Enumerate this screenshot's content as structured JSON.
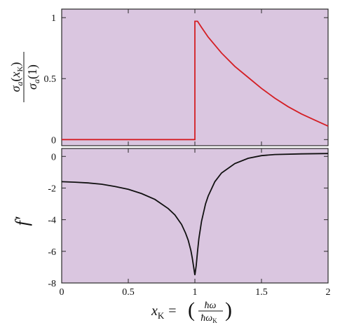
{
  "chart_data": [
    {
      "type": "line",
      "title": "",
      "ylabel": {
        "numerator": {
          "sym": "σ",
          "sub": "a",
          "open": "(",
          "arg": "x",
          "argsub": "K",
          "close": ")"
        },
        "denominator": {
          "sym": "σ",
          "sub": "a",
          "open": "(",
          "arg": "1",
          "close": ")"
        }
      },
      "xlim": [
        0,
        2
      ],
      "ylim": [
        -0.05,
        1.07
      ],
      "yticks": [
        "0",
        "0.5",
        "1"
      ],
      "grid": false,
      "series": [
        {
          "color": "#d41e24",
          "x": [
            0,
            0.5,
            0.99,
            1.0,
            1.0,
            1.02,
            1.05,
            1.1,
            1.2,
            1.3,
            1.4,
            1.5,
            1.6,
            1.7,
            1.8,
            1.9,
            2.0
          ],
          "y": [
            0,
            0,
            0,
            0,
            0.97,
            0.97,
            0.92,
            0.84,
            0.71,
            0.6,
            0.51,
            0.42,
            0.34,
            0.27,
            0.21,
            0.16,
            0.11
          ]
        }
      ]
    },
    {
      "type": "line",
      "title": "",
      "ylabel": "f′",
      "xlabel": {
        "var": "x",
        "sub": "K",
        "eq": "=",
        "num": "ħω",
        "den": "ħω",
        "densub": "K"
      },
      "xlim": [
        0,
        2
      ],
      "ylim": [
        -8,
        0.5
      ],
      "xticks": [
        "0",
        "0.5",
        "1",
        "1.5",
        "2"
      ],
      "yticks": [
        "0",
        "-2",
        "-4",
        "-6",
        "-8"
      ],
      "grid": false,
      "series": [
        {
          "color": "#111111",
          "x": [
            0,
            0.1,
            0.2,
            0.3,
            0.4,
            0.5,
            0.6,
            0.7,
            0.8,
            0.85,
            0.9,
            0.93,
            0.95,
            0.97,
            0.98,
            0.99,
            1.0,
            1.01,
            1.02,
            1.03,
            1.05,
            1.08,
            1.1,
            1.15,
            1.2,
            1.3,
            1.4,
            1.5,
            1.6,
            1.8,
            2.0
          ],
          "y": [
            -1.6,
            -1.63,
            -1.68,
            -1.76,
            -1.9,
            -2.08,
            -2.35,
            -2.72,
            -3.3,
            -3.7,
            -4.3,
            -4.85,
            -5.3,
            -5.95,
            -6.4,
            -6.95,
            -7.5,
            -6.9,
            -6.0,
            -5.2,
            -4.1,
            -3.0,
            -2.5,
            -1.6,
            -1.05,
            -0.45,
            -0.12,
            0.05,
            0.12,
            0.16,
            0.18
          ]
        }
      ]
    }
  ]
}
